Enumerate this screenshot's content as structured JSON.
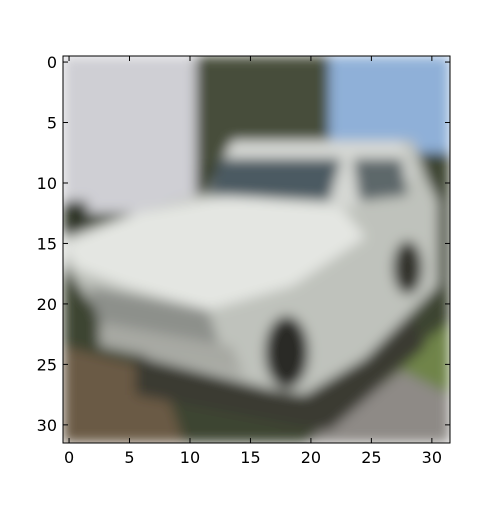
{
  "chart_data": {
    "type": "heatmap",
    "title": "",
    "xlabel": "",
    "ylabel": "",
    "xlim": [
      -0.5,
      31.5
    ],
    "ylim": [
      31.5,
      -0.5
    ],
    "y_inverted": true,
    "grid": false,
    "colorbar": false,
    "xticks": [
      0,
      5,
      10,
      15,
      20,
      25,
      30
    ],
    "yticks": [
      0,
      5,
      10,
      15,
      20,
      25,
      30
    ],
    "xtick_labels": [
      "0",
      "5",
      "10",
      "15",
      "20",
      "25",
      "30"
    ],
    "ytick_labels": [
      "0",
      "5",
      "10",
      "15",
      "20",
      "25",
      "30"
    ],
    "image_shape": [
      32,
      32,
      3
    ],
    "image_content": "blurred photo of a white vintage car in front of a white building and trees",
    "colors": {
      "sky": "#8fb0d8",
      "building": "#cfcfd4",
      "trees": "#3c4430",
      "car_body": "#e4e6e2",
      "car_shadow": "#3a3a30",
      "windshield": "#4c5a62",
      "ground": "#6b5a44",
      "grass": "#708448",
      "road": "#8e8a86"
    }
  }
}
